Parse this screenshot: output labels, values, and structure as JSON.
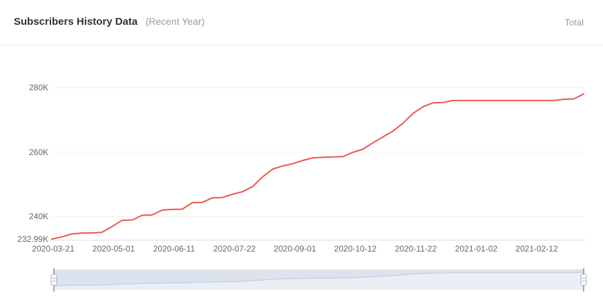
{
  "header": {
    "title": "Subscribers History Data",
    "subtitle": "(Recent Year)",
    "right_label": "Total"
  },
  "colors": {
    "line": "#e8584e",
    "grid": "#f0f0f0",
    "axis_line": "#e0e0e0",
    "axis_text": "#666666",
    "title_text": "#333333",
    "muted_text": "#9b9b9b",
    "slider_bg": "#eaeef5",
    "slider_shadow_fill": "#dce3ee",
    "slider_curve": "#bcc8da",
    "slider_handle": "#9aa9bf"
  },
  "chart_data": {
    "type": "line",
    "title": "Subscribers History Data (Recent Year)",
    "series_name": "Total",
    "unit": "K subscribers",
    "line_style": "step-like weekly increments",
    "x": [
      "2020-03-21",
      "2020-03-28",
      "2020-04-04",
      "2020-04-11",
      "2020-04-18",
      "2020-04-25",
      "2020-05-02",
      "2020-05-09",
      "2020-05-16",
      "2020-05-23",
      "2020-05-30",
      "2020-06-06",
      "2020-06-13",
      "2020-06-20",
      "2020-06-27",
      "2020-07-04",
      "2020-07-11",
      "2020-07-18",
      "2020-07-25",
      "2020-08-01",
      "2020-08-08",
      "2020-08-15",
      "2020-08-22",
      "2020-08-29",
      "2020-09-05",
      "2020-09-12",
      "2020-09-19",
      "2020-09-26",
      "2020-10-03",
      "2020-10-10",
      "2020-10-17",
      "2020-10-24",
      "2020-10-31",
      "2020-11-07",
      "2020-11-14",
      "2020-11-21",
      "2020-11-28",
      "2020-12-05",
      "2020-12-12",
      "2020-12-19",
      "2020-12-26",
      "2021-01-02",
      "2021-01-09",
      "2021-01-16",
      "2021-01-23",
      "2021-01-30",
      "2021-02-06",
      "2021-02-13",
      "2021-02-20",
      "2021-02-27",
      "2021-03-06",
      "2021-03-13",
      "2021-03-20",
      "2021-03-27"
    ],
    "values": [
      232.99,
      233.7,
      234.6,
      234.9,
      234.9,
      235.1,
      236.9,
      238.8,
      238.9,
      240.4,
      240.5,
      242.0,
      242.2,
      242.3,
      244.3,
      244.4,
      245.8,
      245.9,
      246.9,
      247.7,
      249.3,
      252.3,
      254.7,
      255.7,
      256.4,
      257.4,
      258.2,
      258.4,
      258.5,
      258.6,
      259.9,
      260.9,
      262.9,
      264.7,
      266.5,
      269.0,
      272.0,
      274.1,
      275.3,
      275.4,
      276.0,
      276.0,
      276.0,
      276.0,
      276.0,
      276.0,
      276.0,
      276.0,
      276.0,
      276.0,
      276.0,
      276.4,
      276.5,
      278.05
    ],
    "x_tick_labels": [
      "2020-03-21",
      "2020-05-01",
      "2020-06-11",
      "2020-07-22",
      "2020-09-01",
      "2020-10-12",
      "2020-11-22",
      "2021-01-02",
      "2021-02-12"
    ],
    "y_tick_labels": [
      "280K",
      "260K",
      "240K",
      "232.99K"
    ],
    "y_ticks_values": [
      280,
      260,
      240,
      232.99
    ],
    "ylim": [
      232.99,
      281.6
    ],
    "grid": "horizontal-only",
    "legend_position": "none",
    "has_range_slider": true
  }
}
